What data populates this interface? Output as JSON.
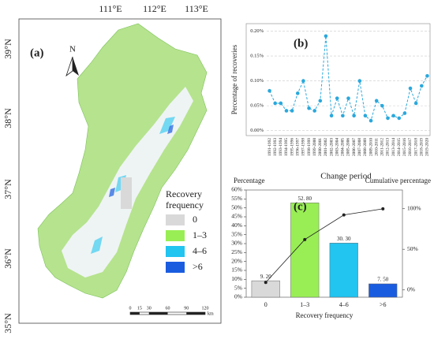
{
  "map": {
    "panel_label": "(a)",
    "north": "N",
    "lon_labels": [
      "111°E",
      "112°E",
      "113°E"
    ],
    "lat_labels": [
      "39°N",
      "38°N",
      "37°N",
      "36°N",
      "35°N"
    ],
    "legend_title_lines": [
      "Recovery",
      "frequency"
    ],
    "legend": [
      {
        "label": "0",
        "color": "#d9d9d9"
      },
      {
        "label": "1–3",
        "color": "#99ee55"
      },
      {
        "label": "4–6",
        "color": "#22c4f0"
      },
      {
        "label": ">6",
        "color": "#1a5ce0"
      }
    ],
    "scale_values": [
      0,
      15,
      30,
      60,
      90,
      120
    ],
    "scale_unit": "km"
  },
  "chart_data": [
    {
      "type": "line",
      "panel_label": "(b)",
      "x_label": "Change period",
      "y_label": "Percentage of recoveries",
      "categories": [
        "1991-1992",
        "1992-1993",
        "1993-1994",
        "1994-1995",
        "1995-1996",
        "1996-1997",
        "1997-1998",
        "1998-1999",
        "1999-2000",
        "2000-2001",
        "2001-2002",
        "2002-2003",
        "2003-2004",
        "2004-2005",
        "2005-2006",
        "2006-2007",
        "2007-2008",
        "2008-2009",
        "2009-2010",
        "2010-2011",
        "2011-2012",
        "2012-2013",
        "2013-2014",
        "2014-2015",
        "2015-2016",
        "2016-2017",
        "2017-2018",
        "2018-2019",
        "2019-2020"
      ],
      "values": [
        0.08,
        0.055,
        0.055,
        0.04,
        0.04,
        0.075,
        0.1,
        0.045,
        0.04,
        0.06,
        0.19,
        0.03,
        0.065,
        0.03,
        0.065,
        0.03,
        0.1,
        0.03,
        0.02,
        0.06,
        0.05,
        0.025,
        0.03,
        0.025,
        0.035,
        0.085,
        0.055,
        0.09,
        0.11
      ],
      "color": "#2aa8dc",
      "ylim": [
        -0.01,
        0.215
      ],
      "yticks": [
        {
          "value": 0,
          "label": "0.00%"
        },
        {
          "value": 0.05,
          "label": "0.05%"
        },
        {
          "value": 0.1,
          "label": "0.10%"
        },
        {
          "value": 0.15,
          "label": "0.15%"
        },
        {
          "value": 0.2,
          "label": "0.20%"
        }
      ],
      "grid": true
    },
    {
      "type": "bar",
      "panel_label": "(c)",
      "x_label": "Recovery frequency",
      "y_label": "Percentage",
      "y2_label": "Cumulative percentage",
      "categories": [
        "0",
        "1–3",
        "4–6",
        ">6"
      ],
      "values": [
        9.2,
        52.8,
        30.3,
        7.5
      ],
      "value_labels": [
        "9. 20",
        "52. 80",
        "30. 30",
        "7. 50"
      ],
      "colors": [
        "#d9d9d9",
        "#99ee55",
        "#22c4f0",
        "#1a5ce0"
      ],
      "line": {
        "values": [
          9.2,
          62,
          92.3,
          99.8
        ],
        "color": "#222",
        "axis": "y2"
      },
      "ylim": [
        0,
        60
      ],
      "yticks": [
        {
          "value": 0,
          "label": "0%"
        },
        {
          "value": 5,
          "label": "5%"
        },
        {
          "value": 10,
          "label": "10%"
        },
        {
          "value": 15,
          "label": "15%"
        },
        {
          "value": 20,
          "label": "20%"
        },
        {
          "value": 25,
          "label": "25%"
        },
        {
          "value": 30,
          "label": "30%"
        },
        {
          "value": 35,
          "label": "35%"
        },
        {
          "value": 40,
          "label": "40%"
        },
        {
          "value": 45,
          "label": "45%"
        },
        {
          "value": 50,
          "label": "50%"
        },
        {
          "value": 55,
          "label": "55%"
        },
        {
          "value": 60,
          "label": "60%"
        }
      ],
      "y2lim": [
        -9,
        123
      ],
      "y2ticks": [
        {
          "value": 0,
          "label": "0%"
        },
        {
          "value": 50,
          "label": "50%"
        },
        {
          "value": 100,
          "label": "100%"
        }
      ]
    }
  ]
}
